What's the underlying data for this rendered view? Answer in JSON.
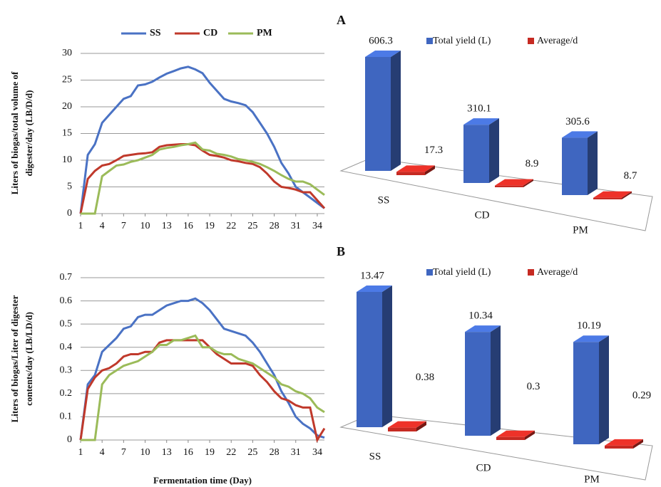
{
  "chart_data": [
    {
      "type": "line",
      "legend": true,
      "ylabel": [
        "Liters of biogas/total volume of",
        "digester/day  (LB/D/d)"
      ],
      "x": [
        1,
        2,
        3,
        4,
        5,
        6,
        7,
        8,
        9,
        10,
        11,
        12,
        13,
        14,
        15,
        16,
        17,
        18,
        19,
        20,
        21,
        22,
        23,
        24,
        25,
        26,
        27,
        28,
        29,
        30,
        31,
        32,
        33,
        34,
        35
      ],
      "xlim": [
        1,
        35
      ],
      "xticks": [
        1,
        4,
        7,
        10,
        13,
        16,
        19,
        22,
        25,
        28,
        31,
        34
      ],
      "ylim": [
        0,
        30
      ],
      "yticks": [
        0,
        5,
        10,
        15,
        20,
        25,
        30
      ],
      "grid": true,
      "series": [
        {
          "name": "SS",
          "color": "#4a72c4",
          "values": [
            0,
            11,
            13,
            17,
            18.5,
            20,
            21.5,
            22,
            24,
            24.2,
            24.7,
            25.5,
            26.2,
            26.7,
            27.2,
            27.5,
            27,
            26.3,
            24.5,
            23,
            21.5,
            21,
            20.7,
            20.3,
            19,
            17,
            15,
            12.5,
            9.5,
            7.5,
            5,
            4,
            3,
            2,
            1
          ]
        },
        {
          "name": "CD",
          "color": "#c0392b",
          "values": [
            0,
            6.5,
            8,
            9,
            9.3,
            10,
            10.8,
            11,
            11.2,
            11.3,
            11.5,
            12.5,
            12.8,
            12.9,
            13,
            13,
            12.8,
            11.8,
            11,
            10.8,
            10.5,
            10,
            9.8,
            9.5,
            9.3,
            8.7,
            7.5,
            6,
            5,
            4.8,
            4.5,
            4,
            4,
            2.5,
            1
          ]
        },
        {
          "name": "PM",
          "color": "#9bbb59",
          "values": [
            0,
            0,
            0,
            7,
            8,
            9,
            9.2,
            9.7,
            10,
            10.5,
            11,
            12,
            12.3,
            12.5,
            12.8,
            13,
            13.3,
            12,
            11.8,
            11.2,
            11,
            10.7,
            10.2,
            10,
            9.7,
            9.3,
            8.7,
            8,
            7.2,
            6.5,
            6,
            6,
            5.5,
            4.5,
            3.5
          ]
        }
      ]
    },
    {
      "type": "line",
      "ylabel": [
        "Liters of biogas/Liter of digester",
        "contents/day  (LB/LD/d)"
      ],
      "xlabel": "Fermentation time (Day)",
      "x": [
        1,
        2,
        3,
        4,
        5,
        6,
        7,
        8,
        9,
        10,
        11,
        12,
        13,
        14,
        15,
        16,
        17,
        18,
        19,
        20,
        21,
        22,
        23,
        24,
        25,
        26,
        27,
        28,
        29,
        30,
        31,
        32,
        33,
        34,
        35
      ],
      "xlim": [
        1,
        35
      ],
      "xticks": [
        1,
        4,
        7,
        10,
        13,
        16,
        19,
        22,
        25,
        28,
        31,
        34
      ],
      "ylim": [
        0,
        0.7
      ],
      "yticks": [
        0,
        0.1,
        0.2,
        0.3,
        0.4,
        0.5,
        0.6,
        0.7
      ],
      "grid": true,
      "series": [
        {
          "color": "#4a72c4",
          "values": [
            0,
            0.24,
            0.28,
            0.38,
            0.41,
            0.44,
            0.48,
            0.49,
            0.53,
            0.54,
            0.54,
            0.56,
            0.58,
            0.59,
            0.6,
            0.6,
            0.61,
            0.59,
            0.56,
            0.52,
            0.48,
            0.47,
            0.46,
            0.45,
            0.42,
            0.38,
            0.33,
            0.28,
            0.21,
            0.16,
            0.1,
            0.07,
            0.05,
            0.02,
            0.01
          ]
        },
        {
          "color": "#c0392b",
          "values": [
            0,
            0.22,
            0.27,
            0.3,
            0.31,
            0.33,
            0.36,
            0.37,
            0.37,
            0.38,
            0.38,
            0.42,
            0.43,
            0.43,
            0.43,
            0.43,
            0.43,
            0.43,
            0.4,
            0.37,
            0.35,
            0.33,
            0.33,
            0.33,
            0.32,
            0.28,
            0.25,
            0.21,
            0.18,
            0.17,
            0.15,
            0.14,
            0.14,
            0,
            0.05
          ]
        },
        {
          "color": "#9bbb59",
          "values": [
            0,
            0,
            0,
            0.24,
            0.28,
            0.3,
            0.32,
            0.33,
            0.34,
            0.36,
            0.38,
            0.41,
            0.41,
            0.43,
            0.43,
            0.44,
            0.45,
            0.4,
            0.4,
            0.38,
            0.37,
            0.37,
            0.35,
            0.34,
            0.33,
            0.31,
            0.29,
            0.27,
            0.24,
            0.23,
            0.21,
            0.2,
            0.18,
            0.14,
            0.12
          ]
        }
      ]
    },
    {
      "type": "bar3d",
      "label": "A",
      "categories": [
        "SS",
        "CD",
        "PM"
      ],
      "series": [
        {
          "name": "Total yield (L)",
          "color": "#3f66c0",
          "values": [
            606.3,
            310.1,
            305.6
          ]
        },
        {
          "name": "Average/d",
          "color": "#c62a22",
          "values": [
            17.3,
            8.9,
            8.7
          ]
        }
      ]
    },
    {
      "type": "bar3d",
      "label": "B",
      "categories": [
        "SS",
        "CD",
        "PM"
      ],
      "series": [
        {
          "name": "Total yield (L)",
          "color": "#3f66c0",
          "values": [
            13.47,
            10.34,
            10.19
          ]
        },
        {
          "name": "Average/d",
          "color": "#c62a22",
          "values": [
            0.38,
            0.3,
            0.29
          ]
        }
      ]
    }
  ]
}
